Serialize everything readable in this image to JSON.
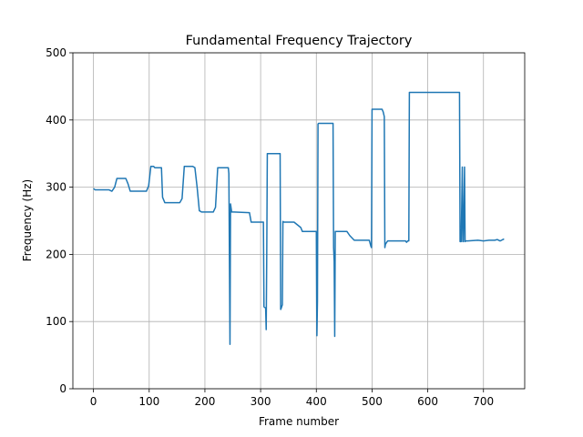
{
  "chart_data": {
    "type": "line",
    "title": "Fundamental Frequency Trajectory",
    "x_label": "Frame number",
    "y_label": "Frequency (Hz)",
    "x": [
      0,
      3,
      28,
      33,
      38,
      42,
      58,
      62,
      66,
      70,
      95,
      99,
      103,
      108,
      110,
      122,
      124,
      128,
      155,
      159,
      163,
      178,
      182,
      186,
      190,
      194,
      215,
      219,
      223,
      242,
      243,
      245,
      246,
      248,
      252,
      280,
      283,
      305,
      306,
      309,
      310,
      311,
      312,
      335,
      336,
      337,
      339,
      340,
      342,
      360,
      372,
      375,
      400,
      401,
      402,
      403,
      404,
      406,
      430,
      431,
      432,
      433,
      434,
      436,
      455,
      460,
      468,
      495,
      498,
      499,
      500,
      518,
      520,
      522,
      523,
      524,
      528,
      560,
      562,
      564,
      566,
      567,
      568,
      657,
      658,
      660,
      662,
      663,
      664,
      666,
      667,
      668,
      672,
      690,
      700,
      710,
      720,
      725,
      730,
      737
    ],
    "series": [
      {
        "color": "#1f77b4",
        "values": [
          298,
          296,
          296,
          294,
          300,
          313,
          313,
          305,
          294,
          294,
          294,
          302,
          331,
          331,
          329,
          329,
          285,
          277,
          277,
          283,
          331,
          331,
          329,
          300,
          265,
          263,
          263,
          270,
          329,
          329,
          320,
          66,
          275,
          263,
          263,
          262,
          248,
          248,
          122,
          120,
          88,
          200,
          350,
          350,
          118,
          120,
          125,
          249,
          248,
          248,
          240,
          234,
          234,
          79,
          130,
          394,
          395,
          395,
          395,
          210,
          190,
          78,
          234,
          234,
          234,
          228,
          221,
          221,
          212,
          210,
          416,
          416,
          412,
          405,
          210,
          215,
          220,
          220,
          218,
          220,
          220,
          441,
          441,
          441,
          219,
          219,
          330,
          219,
          219,
          330,
          219,
          220,
          220,
          221,
          220,
          221,
          221,
          222,
          220,
          223
        ]
      }
    ],
    "xlim": [
      -37,
      774
    ],
    "ylim": [
      0,
      500
    ],
    "xticks": [
      0,
      100,
      200,
      300,
      400,
      500,
      600,
      700
    ],
    "yticks": [
      0,
      100,
      200,
      300,
      400,
      500
    ],
    "grid": true
  }
}
